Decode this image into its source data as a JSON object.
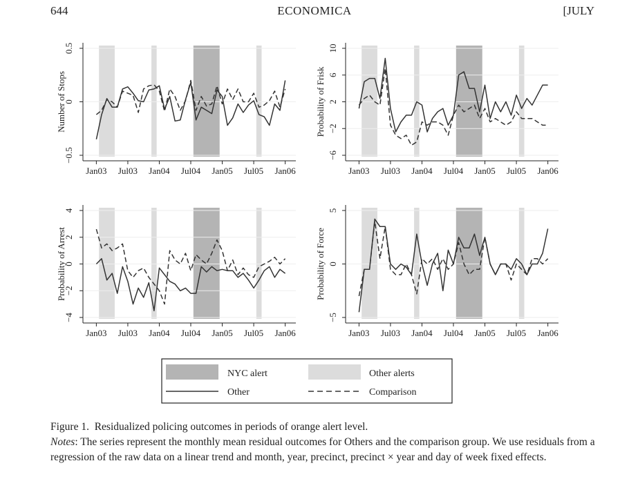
{
  "header": {
    "page_number": "644",
    "journal": "ECONOMICA",
    "issue": "[JULY"
  },
  "colors": {
    "nyc_alert": "#b4b4b4",
    "other_alerts": "#dcdcdc",
    "line": "#333333",
    "gridline": "#eeeeee"
  },
  "legend": {
    "nyc_alert": "NYC alert",
    "other_alerts": "Other alerts",
    "other": "Other",
    "comparison": "Comparison"
  },
  "caption": {
    "figure_label": "Figure 1.",
    "figure_title": "Residualized policing outcomes in periods of orange alert level.",
    "notes_label": "Notes",
    "notes_text": ": The series represent the monthly mean residual outcomes for Others and the comparison group. We use residuals from a regression of the raw data on a linear trend and month, year, precinct, precinct × year and day of week fixed effects."
  },
  "chart_data": [
    {
      "type": "line",
      "ylabel": "Number of Stops",
      "yticks": [
        "−0.5",
        "0",
        "0.5"
      ],
      "ytick_values": [
        -0.5,
        0,
        0.5
      ],
      "ylim": [
        -0.5,
        0.5
      ],
      "x_tick_labels": [
        "Jan03",
        "Jul03",
        "Jan04",
        "Jul04",
        "Jan05",
        "Jul05",
        "Jan06"
      ],
      "x_tick_months": [
        0,
        6,
        12,
        18,
        24,
        30,
        36
      ],
      "xlim": [
        -1.5,
        37.5
      ],
      "series": [
        {
          "name": "Other",
          "style": "solid",
          "values": [
            -0.35,
            -0.12,
            0.03,
            -0.05,
            -0.05,
            0.12,
            0.14,
            0.08,
            0.01,
            0.0,
            0.11,
            0.12,
            0.15,
            -0.07,
            0.05,
            -0.18,
            -0.17,
            0.02,
            0.18,
            -0.17,
            -0.05,
            -0.08,
            -0.11,
            0.11,
            0.05,
            -0.22,
            -0.15,
            -0.02,
            -0.1,
            -0.03,
            0.01,
            -0.12,
            -0.14,
            -0.22,
            -0.02,
            -0.08,
            0.2
          ]
        },
        {
          "name": "Comparison",
          "style": "dashed",
          "values": [
            -0.12,
            -0.08,
            0.02,
            0.0,
            -0.05,
            0.1,
            0.08,
            0.06,
            -0.1,
            0.12,
            0.15,
            0.16,
            0.1,
            -0.09,
            0.12,
            0.05,
            -0.08,
            0.01,
            0.2,
            -0.08,
            0.05,
            -0.04,
            -0.02,
            0.15,
            -0.02,
            0.12,
            0.02,
            0.12,
            0.0,
            0.0,
            0.08,
            -0.05,
            -0.03,
            0.01,
            0.1,
            -0.05,
            0.12
          ]
        }
      ]
    },
    {
      "type": "line",
      "ylabel": "Probability of Frisk",
      "yticks": [
        "−6",
        "−2",
        "2",
        "6",
        "10"
      ],
      "ytick_values": [
        -6,
        -2,
        2,
        6,
        10
      ],
      "ylim": [
        -6,
        10
      ],
      "x_tick_labels": [
        "Jan03",
        "Jul03",
        "Jan04",
        "Jul04",
        "Jan05",
        "Jul05",
        "Jan06"
      ],
      "x_tick_months": [
        0,
        6,
        12,
        18,
        24,
        30,
        36
      ],
      "xlim": [
        -1.5,
        37.5
      ],
      "series": [
        {
          "name": "Other",
          "style": "solid",
          "values": [
            1.0,
            5.0,
            5.5,
            5.5,
            2.5,
            8.5,
            1.0,
            -2.5,
            -1.0,
            0.0,
            0.0,
            2.0,
            1.5,
            -2.5,
            -0.5,
            0.5,
            1.0,
            -1.5,
            0.0,
            6.0,
            6.5,
            4.0,
            4.0,
            0.5,
            4.5,
            -0.5,
            2.0,
            0.5,
            2.0,
            0.0,
            3.0,
            1.0,
            2.5,
            1.5,
            3.0,
            4.5,
            4.5
          ]
        },
        {
          "name": "Comparison",
          "style": "dashed",
          "values": [
            1.5,
            2.5,
            3.0,
            2.0,
            1.5,
            7.0,
            -1.5,
            -3.0,
            -3.5,
            -3.0,
            -4.5,
            -4.0,
            -1.0,
            -1.5,
            -1.0,
            -1.0,
            -1.5,
            -3.0,
            0.0,
            1.5,
            0.5,
            1.0,
            1.5,
            -0.5,
            1.0,
            -1.0,
            -0.5,
            -1.0,
            -1.5,
            -1.0,
            0.5,
            -0.5,
            -0.5,
            -0.5,
            -1.0,
            -1.5,
            -1.5
          ]
        }
      ]
    },
    {
      "type": "line",
      "ylabel": "Probability of Arrest",
      "yticks": [
        "−4",
        "−2",
        "0",
        "2",
        "4"
      ],
      "ytick_values": [
        -4,
        -2,
        0,
        2,
        4
      ],
      "ylim": [
        -4,
        4
      ],
      "x_tick_labels": [
        "Jan03",
        "Jul03",
        "Jan04",
        "Jul04",
        "Jan05",
        "Jul05",
        "Jan06"
      ],
      "x_tick_months": [
        0,
        6,
        12,
        18,
        24,
        30,
        36
      ],
      "xlim": [
        -1.5,
        37.5
      ],
      "series": [
        {
          "name": "Other",
          "style": "solid",
          "values": [
            0.0,
            0.4,
            -1.2,
            -0.7,
            -2.2,
            -0.2,
            -1.3,
            -3.0,
            -1.8,
            -2.5,
            -1.4,
            -3.5,
            -0.3,
            -0.8,
            -1.3,
            -1.5,
            -2.0,
            -1.8,
            -2.2,
            -2.2,
            -0.2,
            -0.6,
            -0.2,
            -0.5,
            -0.4,
            -0.5,
            -0.5,
            -1.0,
            -0.7,
            -1.2,
            -1.8,
            -1.2,
            -0.5,
            -0.2,
            -1.0,
            -0.4,
            -0.7
          ]
        },
        {
          "name": "Comparison",
          "style": "dashed",
          "values": [
            2.6,
            1.2,
            1.5,
            1.0,
            1.2,
            1.5,
            -0.5,
            -1.0,
            -0.5,
            -0.3,
            -1.0,
            -1.5,
            -2.0,
            -3.0,
            1.0,
            0.3,
            0.0,
            0.8,
            -0.5,
            0.7,
            0.3,
            0.0,
            0.8,
            1.8,
            1.0,
            -0.5,
            0.3,
            -0.8,
            -0.3,
            -0.8,
            -1.0,
            -0.2,
            0.0,
            0.2,
            0.5,
            0.0,
            0.4
          ]
        }
      ]
    },
    {
      "type": "line",
      "ylabel": "Probability of Force",
      "yticks": [
        "−5",
        "0",
        "5"
      ],
      "ytick_values": [
        -5,
        0,
        5
      ],
      "ylim": [
        -5,
        5
      ],
      "x_tick_labels": [
        "Jan03",
        "Jul03",
        "Jan04",
        "Jul04",
        "Jan05",
        "Jul05",
        "Jan06"
      ],
      "x_tick_months": [
        0,
        6,
        12,
        18,
        24,
        30,
        36
      ],
      "xlim": [
        -1.5,
        37.5
      ],
      "series": [
        {
          "name": "Other",
          "style": "solid",
          "values": [
            -4.5,
            -0.5,
            -0.5,
            4.2,
            3.5,
            3.5,
            0.0,
            -0.5,
            0.0,
            -0.3,
            -1.0,
            2.8,
            0.0,
            -2.0,
            0.0,
            1.0,
            -2.5,
            1.3,
            0.0,
            2.5,
            1.5,
            1.5,
            2.8,
            0.8,
            2.5,
            0.0,
            -1.0,
            0.0,
            0.0,
            -0.5,
            0.5,
            0.0,
            -1.0,
            0.0,
            0.0,
            1.0,
            3.3
          ]
        },
        {
          "name": "Comparison",
          "style": "dashed",
          "values": [
            -3.0,
            -0.5,
            -0.5,
            4.0,
            0.5,
            3.5,
            -0.5,
            -1.0,
            -1.0,
            0.0,
            -1.0,
            -2.8,
            0.5,
            0.0,
            0.5,
            -0.5,
            0.5,
            -0.5,
            0.0,
            2.0,
            0.0,
            -1.0,
            -0.5,
            -0.5,
            2.5,
            0.0,
            -1.0,
            0.0,
            0.0,
            -1.5,
            0.0,
            -0.5,
            -1.0,
            0.5,
            0.5,
            0.0,
            0.5
          ]
        }
      ]
    }
  ],
  "alert_periods": {
    "nyc_alert": [
      [
        18.5,
        23.5
      ]
    ],
    "other_alerts": [
      [
        0.5,
        3.5
      ],
      [
        10.5,
        11.5
      ],
      [
        30.5,
        31.5
      ]
    ]
  }
}
